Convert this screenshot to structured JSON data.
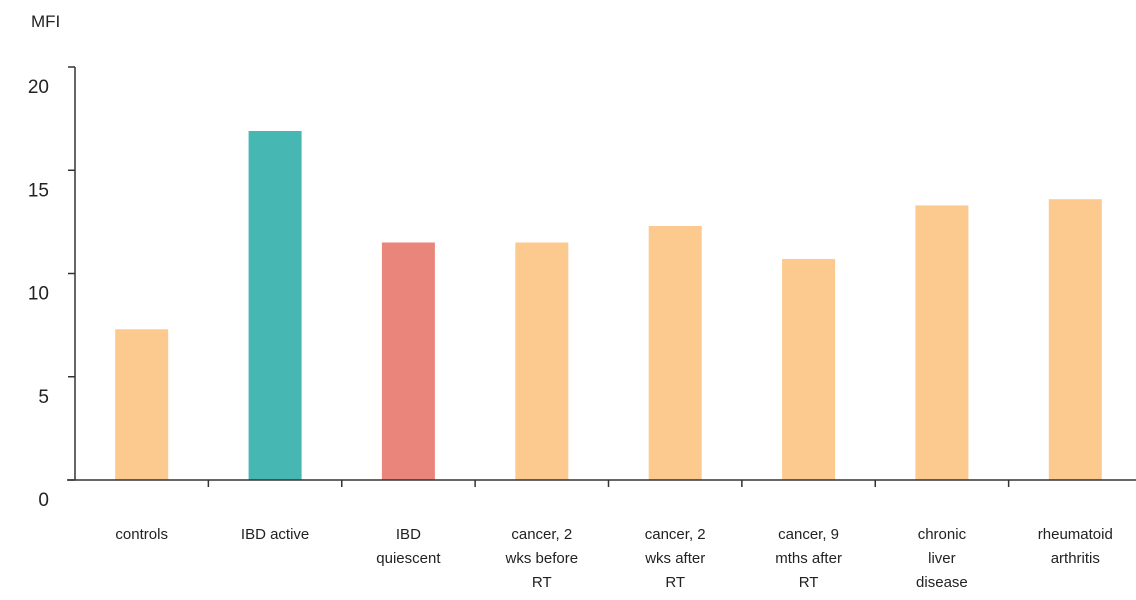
{
  "chart_data": {
    "type": "bar",
    "title": "",
    "xlabel": "",
    "ylabel": "MFI",
    "ylim": [
      0,
      20
    ],
    "yticks": [
      0,
      5,
      10,
      15,
      20
    ],
    "grid": false,
    "legend": "none",
    "categories": [
      [
        "controls"
      ],
      [
        "IBD active"
      ],
      [
        "IBD",
        "quiescent"
      ],
      [
        "cancer, 2",
        "wks before",
        "RT"
      ],
      [
        "cancer, 2",
        "wks after",
        "RT"
      ],
      [
        "cancer, 9",
        "mths after",
        "RT"
      ],
      [
        "chronic",
        "liver",
        "disease"
      ],
      [
        "rheumatoid",
        "arthritis"
      ]
    ],
    "values": [
      7.3,
      16.9,
      11.5,
      11.5,
      12.3,
      10.7,
      13.3,
      13.6
    ],
    "bar_colors": [
      "#fcc98f",
      "#47b7b4",
      "#ea857c",
      "#fcc98f",
      "#fcc98f",
      "#fcc98f",
      "#fcc98f",
      "#fcc98f"
    ],
    "axis_color": "#333333"
  }
}
